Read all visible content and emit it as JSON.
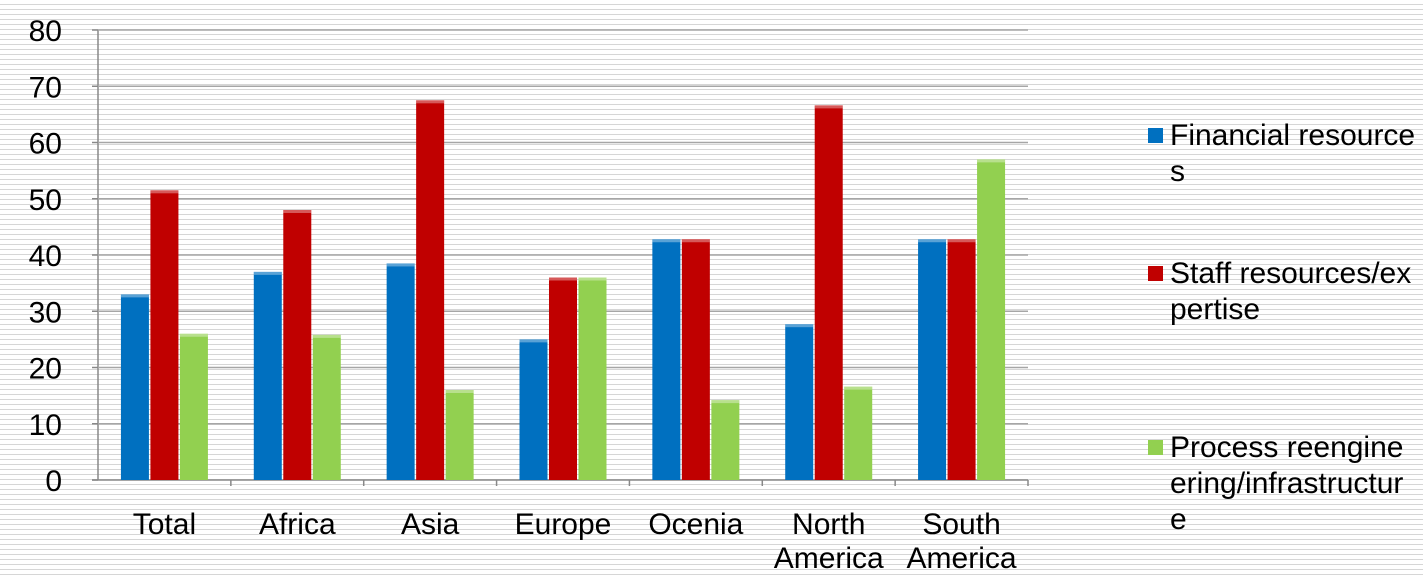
{
  "chart_data": {
    "type": "bar",
    "categories": [
      "Total",
      "Africa",
      "Asia",
      "Europe",
      "Ocenia",
      "North America",
      "South America"
    ],
    "series": [
      {
        "name": "Financial resources",
        "color": "#0070c0",
        "values": [
          33,
          37,
          38.5,
          25,
          42.8,
          27.7,
          42.8
        ]
      },
      {
        "name": "Staff resources/expertise",
        "color": "#c00000",
        "values": [
          51.5,
          48,
          67.5,
          36,
          42.8,
          66.6,
          42.8
        ]
      },
      {
        "name": "Process reengineering/infrastructure",
        "color": "#92d050",
        "values": [
          26,
          25.8,
          16,
          36,
          14.2,
          16.6,
          57
        ]
      }
    ],
    "yticks": [
      "0",
      "10",
      "20",
      "30",
      "40",
      "50",
      "60",
      "70",
      "80"
    ],
    "ylim": [
      0,
      80
    ],
    "grid": true,
    "legend": "right"
  }
}
